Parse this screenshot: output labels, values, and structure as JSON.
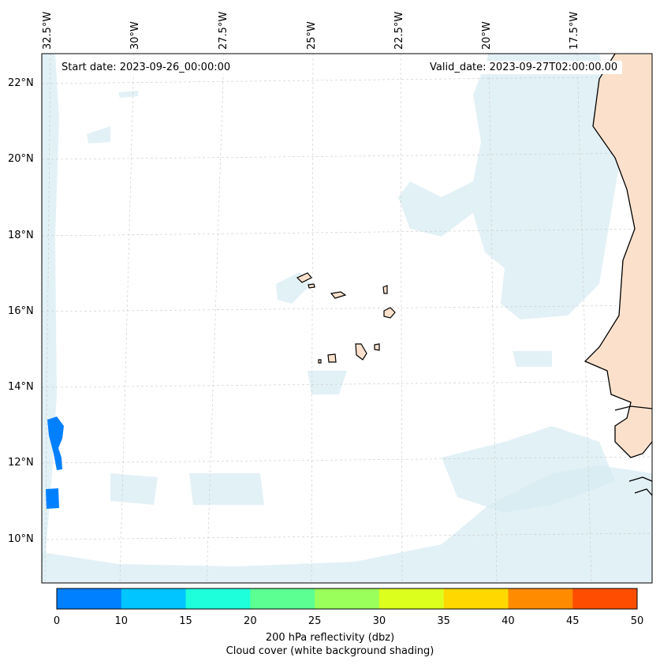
{
  "map": {
    "start_date": "Start date: 2023-09-26_00:00:00",
    "valid_date": "Valid_date: 2023-09-27T02:00:00.00",
    "lon_labels": [
      "32.5°W",
      "30°W",
      "27.5°W",
      "25°W",
      "22.5°W",
      "20°W",
      "17.5°W"
    ],
    "lat_labels": [
      "22°N",
      "20°N",
      "18°N",
      "16°N",
      "14°N",
      "12°N",
      "10°N"
    ],
    "colors": {
      "cloud": "#d6ebf2",
      "land": "#fbe1cc",
      "coast": "#000000",
      "grid": "#c8c8c8"
    },
    "reflectivity_patches_dbz": [
      5,
      5
    ]
  },
  "colorbar": {
    "ticks": [
      "0",
      "10",
      "15",
      "20",
      "25",
      "30",
      "35",
      "40",
      "45",
      "50"
    ],
    "colors": [
      "#0080ff",
      "#00c5ff",
      "#1effdc",
      "#5cff92",
      "#9aff5a",
      "#dcff1e",
      "#ffd800",
      "#ff8c00",
      "#ff4d00"
    ],
    "title_line1": "200 hPa reflectivity (dbz)",
    "title_line2": "Cloud cover (white background shading)"
  }
}
